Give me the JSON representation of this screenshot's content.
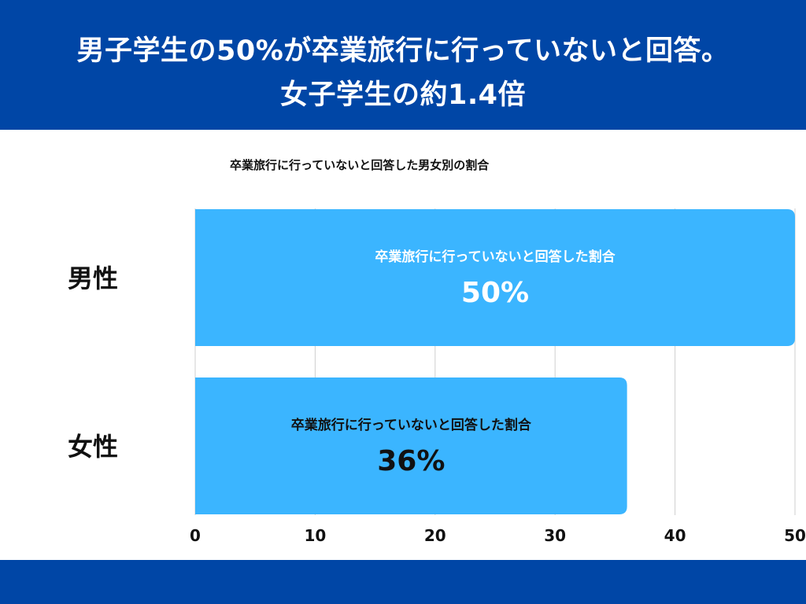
{
  "header": {
    "line1": "男子学生の50%が卒業旅行に行っていないと回答。",
    "line2": "女子学生の約1.4倍"
  },
  "colors": {
    "header_bg": "#0046a6",
    "bar": "#3bb5ff",
    "grid": "#cfcfcf",
    "male_label_color": "#ffffff",
    "female_label_color": "#111111"
  },
  "chart_data": {
    "type": "bar",
    "orientation": "horizontal",
    "title": "卒業旅行に行っていないと回答した男女別の割合",
    "categories": [
      "男性",
      "女性"
    ],
    "values": [
      50,
      36
    ],
    "bar_caption": "卒業旅行に行っていないと回答した割合",
    "value_labels": [
      "50%",
      "36%"
    ],
    "xlim": [
      0,
      50
    ],
    "xticks": [
      0,
      10,
      20,
      30,
      40,
      50
    ],
    "grid": true,
    "legend": "none"
  }
}
